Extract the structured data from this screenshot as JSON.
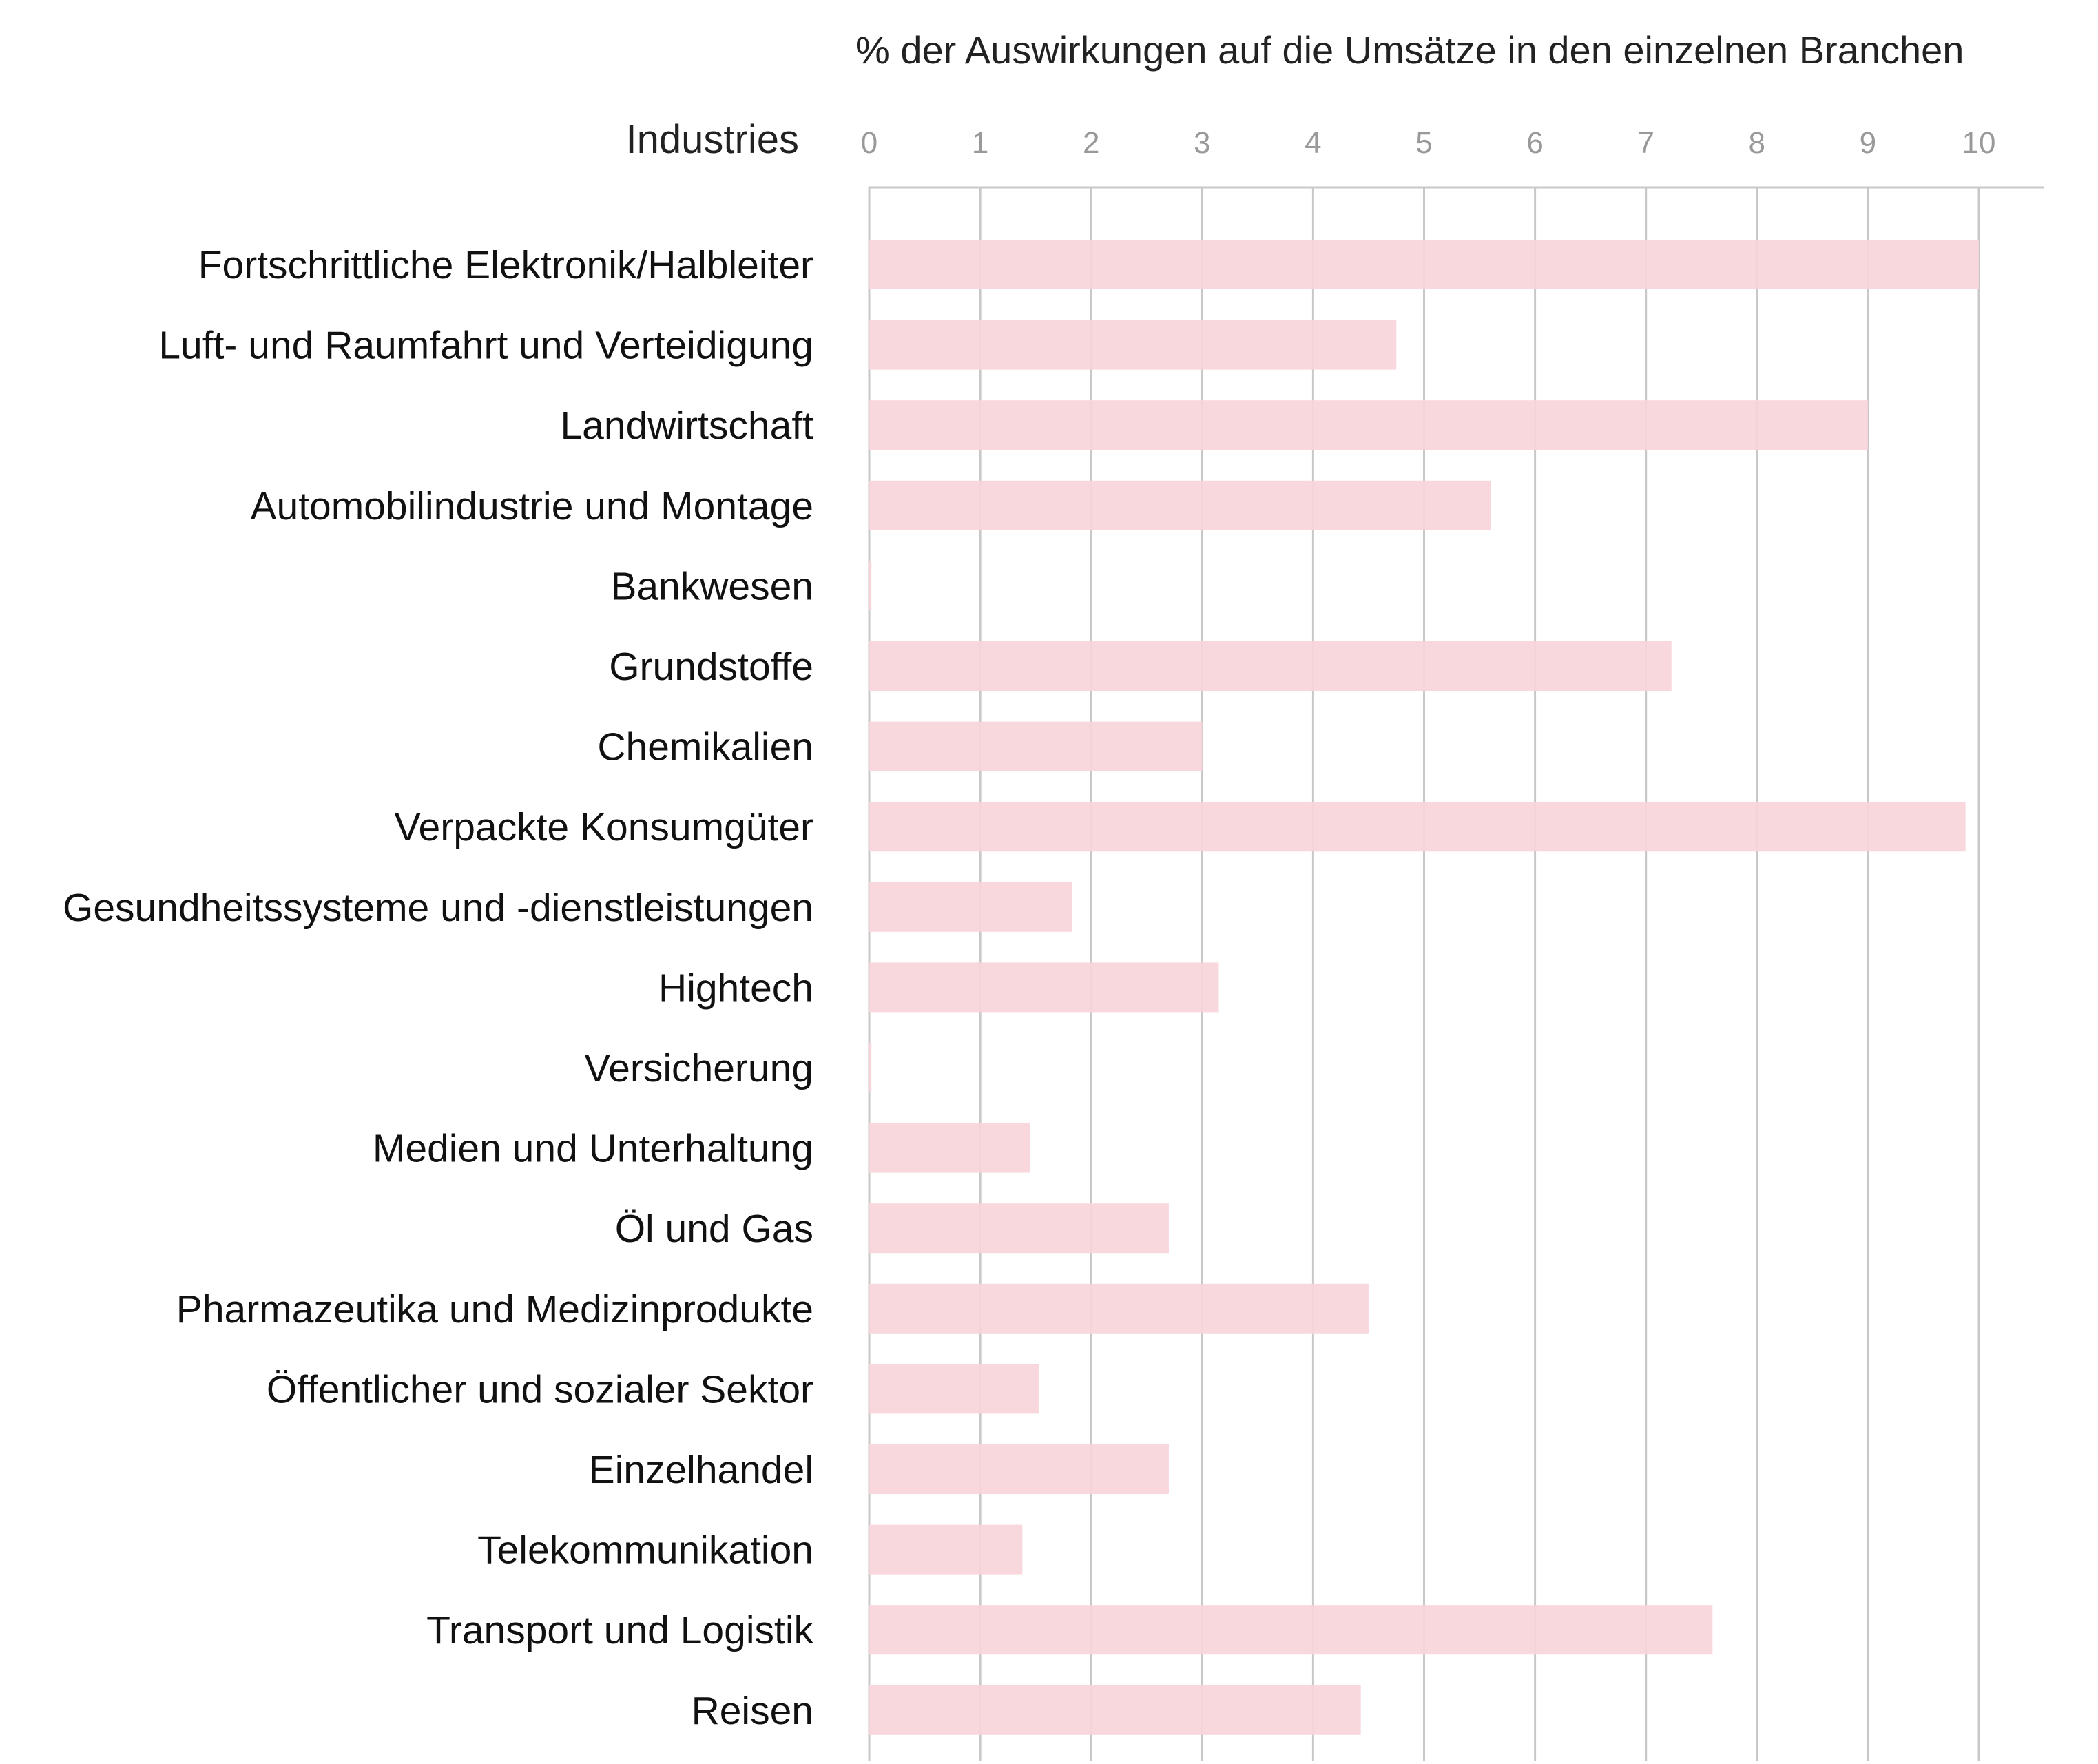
{
  "chart_data": {
    "type": "bar",
    "orientation": "horizontal",
    "title": "% der Auswirkungen auf die Umsätze in den einzelnen Branchen",
    "category_header": "Industries",
    "xlabel": "% der Auswirkungen auf die Umsätze in den einzelnen Branchen",
    "ylabel": "Industries",
    "xlim": [
      0,
      10.6
    ],
    "ticks": [
      0,
      1,
      2,
      3,
      4,
      5,
      6,
      7,
      8,
      9,
      10
    ],
    "grid": true,
    "bar_color": "#f8d5da",
    "grid_color": "#c8c8c8",
    "categories": [
      "Fortschrittliche Elektronik/Halbleiter",
      "Luft- und Raumfahrt und Verteidigung",
      "Landwirtschaft",
      "Automobilindustrie und Montage",
      "Bankwesen",
      "Grundstoffe",
      "Chemikalien",
      "Verpackte Konsumgüter",
      "Gesundheitssysteme und -dienstleistungen",
      "Hightech",
      "Versicherung",
      "Medien und Unterhaltung",
      "Öl und Gas",
      "Pharmazeutika und Medizinprodukte",
      "Öffentlicher und sozialer Sektor",
      "Einzelhandel",
      "Telekommunikation",
      "Transport und Logistik",
      "Reisen"
    ],
    "values": [
      10.0,
      4.75,
      9.0,
      5.6,
      0.02,
      7.23,
      3.0,
      9.88,
      1.83,
      3.15,
      0.02,
      1.45,
      2.7,
      4.5,
      1.53,
      2.7,
      1.38,
      7.6,
      4.43
    ]
  }
}
